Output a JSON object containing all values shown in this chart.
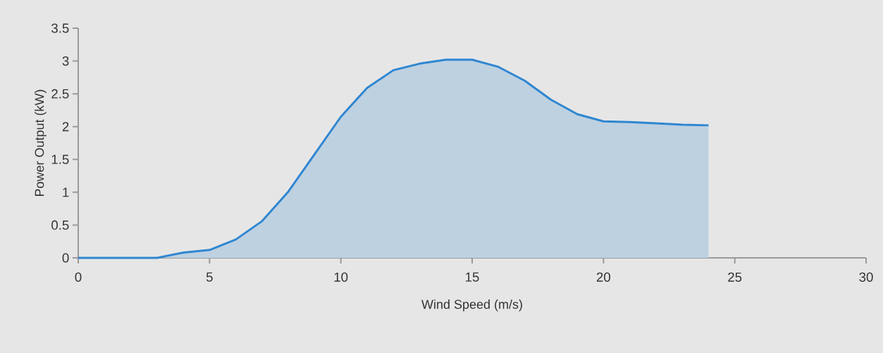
{
  "chart_data": {
    "type": "area",
    "xlabel": "Wind Speed (m/s)",
    "ylabel": "Power Output (kW)",
    "x": [
      0,
      1,
      2,
      3,
      4,
      5,
      6,
      7,
      8,
      9,
      10,
      11,
      12,
      13,
      14,
      15,
      16,
      17,
      18,
      19,
      20,
      21,
      22,
      23,
      24
    ],
    "series": [
      {
        "color": "#2f86d1",
        "values": [
          0,
          0,
          0,
          0,
          0.08,
          0.12,
          0.28,
          0.56,
          1.01,
          1.58,
          2.15,
          2.59,
          2.86,
          2.96,
          3.02,
          3.02,
          2.91,
          2.7,
          2.41,
          2.19,
          2.08,
          2.07,
          2.05,
          2.03,
          2.02
        ]
      }
    ],
    "xlim": [
      0,
      30
    ],
    "xticks": [
      0,
      5,
      10,
      15,
      20,
      25,
      30
    ],
    "ylim": [
      0,
      3.5
    ],
    "yticks": [
      0,
      0.5,
      1,
      1.5,
      2,
      2.5,
      3,
      3.5
    ]
  }
}
